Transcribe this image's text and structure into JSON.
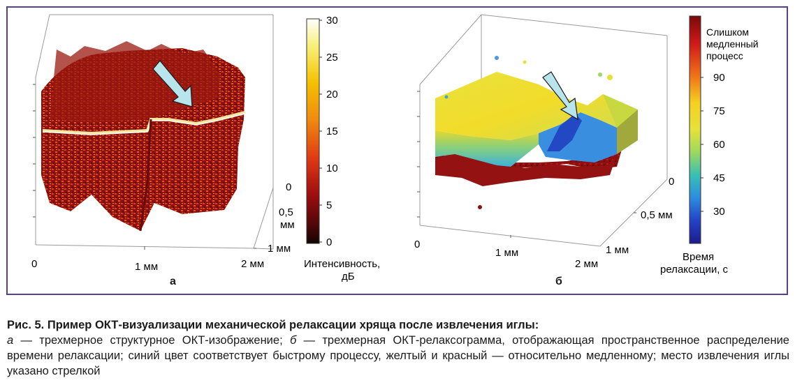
{
  "panel_a": {
    "label": "а",
    "x_ticks": [
      "0",
      "1 мм",
      "2 мм"
    ],
    "y_ticks": [
      "0",
      "0,5\nмм",
      "1 мм"
    ],
    "colorbar": {
      "ticks": [
        "30",
        "25",
        "20",
        "15",
        "10",
        "5",
        "0"
      ],
      "title_line1": "Интенсивность,",
      "title_line2": "дБ",
      "colors": [
        "#ffffff",
        "#f8f07a",
        "#f5c200",
        "#f08a10",
        "#e03a14",
        "#a00e10",
        "#5a0808",
        "#140404"
      ]
    }
  },
  "panel_b": {
    "label": "б",
    "x_ticks": [
      "0",
      "1 мм",
      "2 мм"
    ],
    "y_ticks": [
      "0",
      "0,5 мм",
      "1 мм"
    ],
    "colorbar": {
      "top_label_line1": "Слишком",
      "top_label_line2": "медленный",
      "top_label_line3": "процесс",
      "ticks": [
        "90",
        "75",
        "60",
        "45",
        "30"
      ],
      "title_line1": "Время",
      "title_line2": "релаксации, с",
      "colors": [
        "#7a0a0a",
        "#d01818",
        "#f07018",
        "#f4d020",
        "#e6e23a",
        "#9cd860",
        "#38c0b4",
        "#2c8ce0",
        "#2442c8",
        "#1c1c8c"
      ]
    }
  },
  "caption": {
    "title": "Рис. 5. Пример ОКТ-визуализации механической релаксации хряща после извлечения иглы:",
    "a_letter": "а",
    "a_text": " — трехмерное структурное ОКТ-изображение; ",
    "b_letter": "б",
    "b_text": " — трехмерная ОКТ-релаксограмма, отображающая пространственное распределение времени релаксации; синий цвет соответствует быстрому процессу, желтый и красный — относительно медленному; место извлечения иглы указано стрелкой"
  }
}
